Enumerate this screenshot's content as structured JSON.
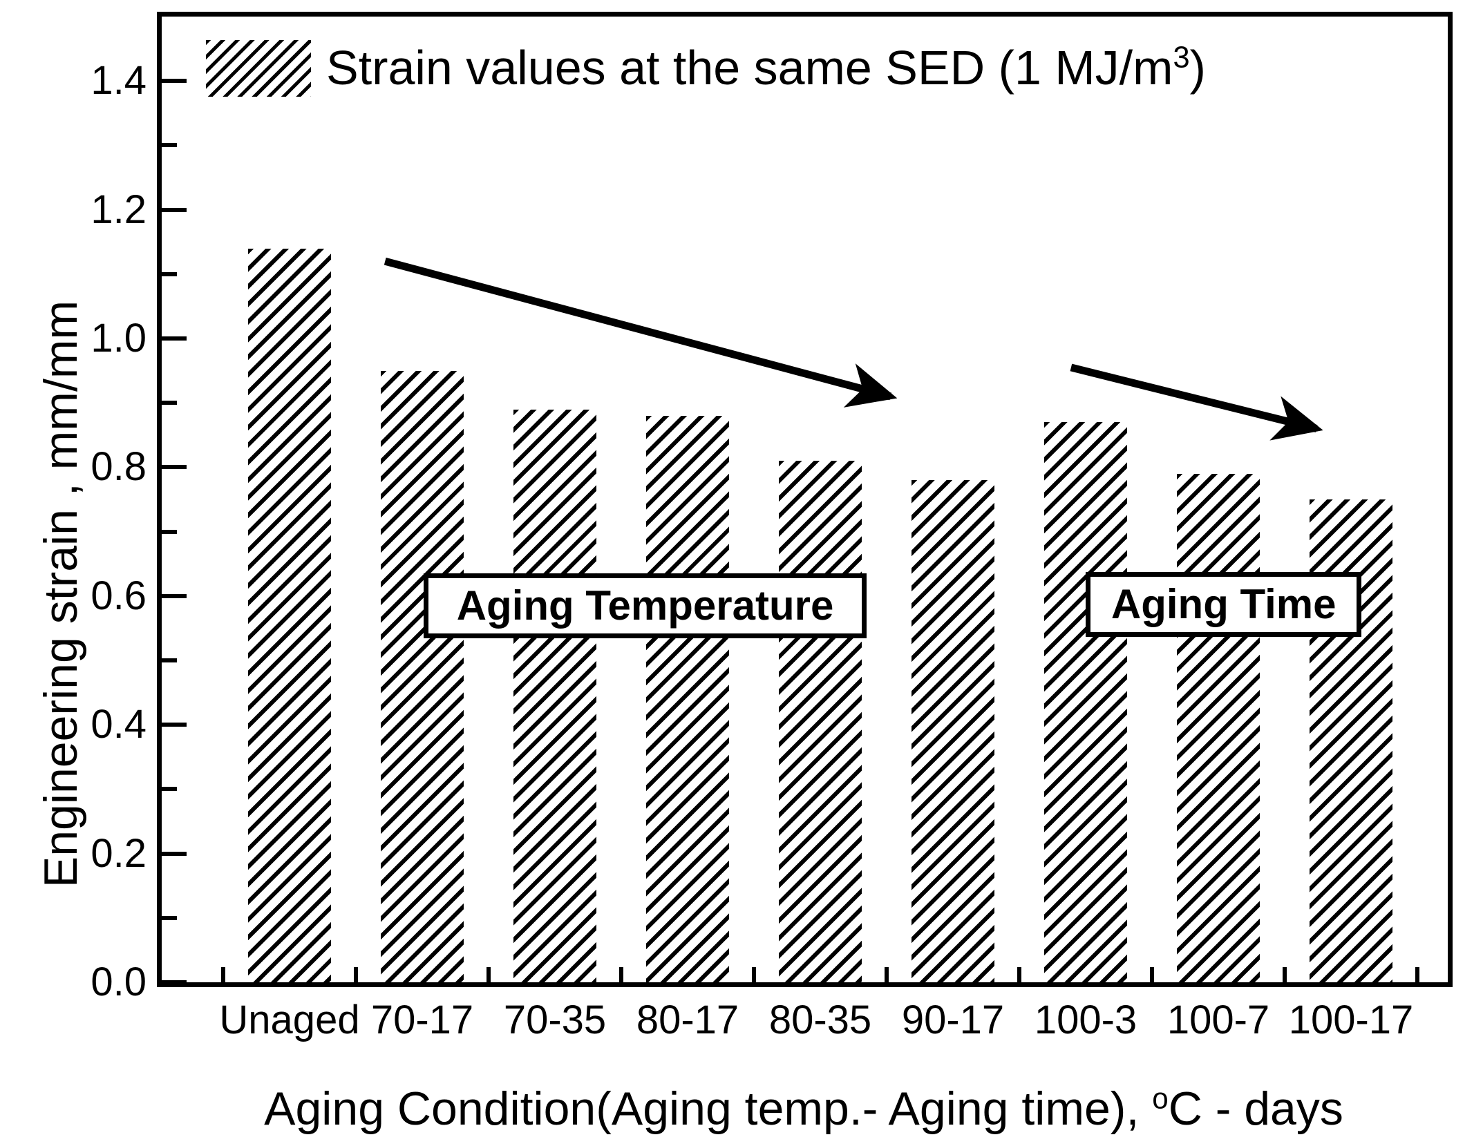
{
  "chart_data": {
    "type": "bar",
    "title": "",
    "ylabel": "Engineering strain , mm/mm",
    "xlabel": {
      "prefix": "Aging Condition(Aging temp.- Aging time), ",
      "sup": "o",
      "suffix": "C - days",
      "full": "Aging Condition(Aging temp.- Aging time), °C - days"
    },
    "legend": {
      "prefix": "Strain values at the same SED (1 MJ/m",
      "sup": "3",
      "suffix": ")",
      "full": "Strain values at the same SED (1 MJ/m³)",
      "swatch": "black-diagonal-hatch",
      "position": "top-left"
    },
    "categories": [
      "Unaged",
      "70-17",
      "70-35",
      "80-17",
      "80-35",
      "90-17",
      "100-3",
      "100-7",
      "100-17"
    ],
    "values": [
      1.14,
      0.95,
      0.89,
      0.88,
      0.81,
      0.78,
      0.87,
      0.79,
      0.75
    ],
    "ylim": [
      0.0,
      1.5
    ],
    "ytick_labels": [
      "0.0",
      "0.2",
      "0.4",
      "0.6",
      "0.8",
      "1.0",
      "1.2",
      "1.4"
    ],
    "ytick_minor": [
      0.1,
      0.3,
      0.5,
      0.7,
      0.9,
      1.1,
      1.3
    ],
    "grid": false,
    "bar_hatch": "diagonal-forward",
    "colors": {
      "foreground": "#000000",
      "background": "#ffffff"
    },
    "annotations": {
      "boxes": [
        {
          "label": "Aging Temperature",
          "x": 2.68,
          "y": 0.585,
          "width_cat": 3.34,
          "height_val": 0.101
        },
        {
          "label": "Aging Time",
          "x": 7.04,
          "y": 0.587,
          "width_cat": 2.08,
          "height_val": 0.101
        }
      ],
      "arrows": [
        {
          "name": "aging-temperature-trend-arrow",
          "x1": 0.72,
          "y1": 1.12,
          "x2": 4.53,
          "y2": 0.91
        },
        {
          "name": "aging-time-trend-arrow",
          "x1": 5.89,
          "y1": 0.955,
          "x2": 7.74,
          "y2": 0.86
        }
      ]
    }
  }
}
